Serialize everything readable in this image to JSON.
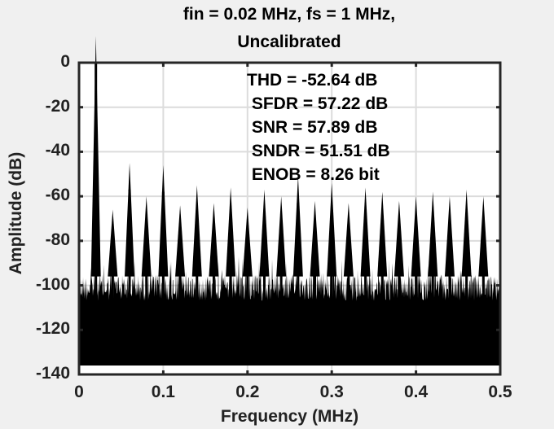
{
  "chart_data": {
    "type": "line",
    "title": "fin = 0.02 MHz,  fs = 1 MHz,",
    "subtitle": "Uncalibrated",
    "xlabel": "Frequency (MHz)",
    "ylabel": "Amplitude (dB)",
    "xlim": [
      0,
      0.5
    ],
    "ylim": [
      -140,
      0
    ],
    "xticks": [
      "0",
      "0.1",
      "0.2",
      "0.3",
      "0.4",
      "0.5"
    ],
    "yticks": [
      "0",
      "-20",
      "-40",
      "-60",
      "-80",
      "-100",
      "-120",
      "-140"
    ],
    "grid": true,
    "legend": null,
    "annotations": [
      "THD = -52.64 dB",
      " SFDR = 57.22 dB",
      " SNR = 57.89 dB",
      " SNDR = 51.51 dB",
      " ENOB = 8.26 bit"
    ],
    "fundamental": {
      "x": 0.02,
      "y": 0
    },
    "spurs": {
      "x": [
        0.04,
        0.06,
        0.08,
        0.1,
        0.12,
        0.14,
        0.16,
        0.18,
        0.2,
        0.22,
        0.24,
        0.26,
        0.28,
        0.3,
        0.32,
        0.34,
        0.36,
        0.38,
        0.4,
        0.42,
        0.44,
        0.46,
        0.48
      ],
      "y": [
        -78,
        -57,
        -72,
        -58,
        -76,
        -67,
        -75,
        -68,
        -77,
        -69,
        -72,
        -63,
        -74,
        -66,
        -75,
        -68,
        -70,
        -74,
        -72,
        -70,
        -72,
        -69,
        -72
      ]
    },
    "noise_floor": {
      "min": -136,
      "typical_top": -95,
      "max_top": -85
    }
  }
}
